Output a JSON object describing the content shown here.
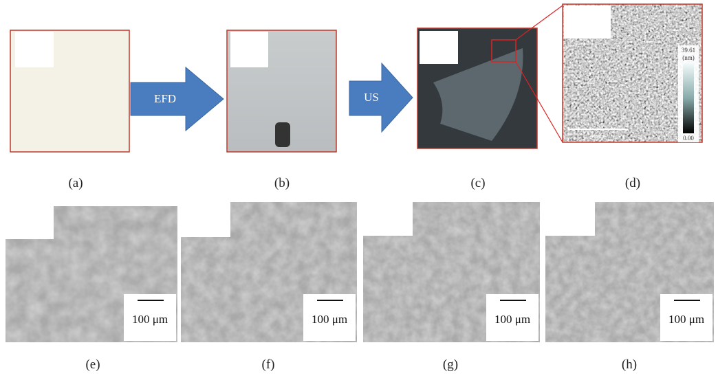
{
  "panels": [
    {
      "label": "(a)"
    },
    {
      "label": "(b)"
    },
    {
      "label": "(c)"
    },
    {
      "label": "(d)"
    },
    {
      "label": "(e)"
    },
    {
      "label": "(f)"
    },
    {
      "label": "(g)"
    },
    {
      "label": "(h)"
    }
  ],
  "arrows": [
    {
      "label": "EFD"
    },
    {
      "label": "US"
    }
  ],
  "afm": {
    "colorbar_max": "39.61",
    "colorbar_unit": "(nm)",
    "colorbar_min": "0.00",
    "scale_bar": "1 μm"
  },
  "scale_bars": [
    "100 μm",
    "100 μm",
    "100 μm",
    "100 μm"
  ]
}
